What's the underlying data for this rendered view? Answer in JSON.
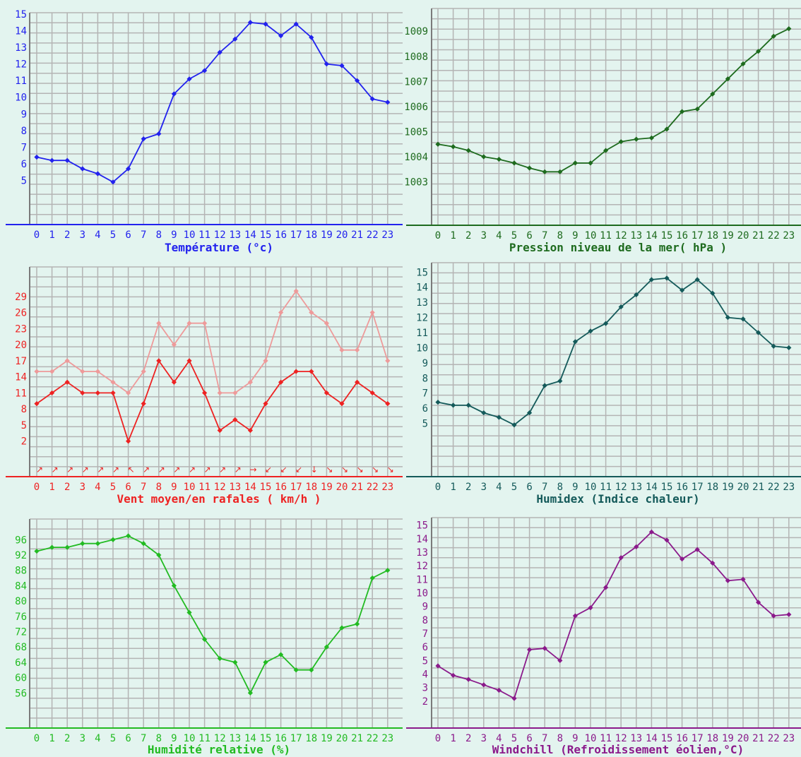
{
  "colors": {
    "background": "#e3f4ef",
    "grid": "#b4b4b4"
  },
  "chart_data": [
    {
      "type": "line",
      "title": "Température (°c)",
      "color": "#2222ee",
      "x": [
        0,
        1,
        2,
        3,
        4,
        5,
        6,
        7,
        8,
        9,
        10,
        11,
        12,
        13,
        14,
        15,
        16,
        17,
        18,
        19,
        20,
        21,
        22,
        23
      ],
      "series": [
        {
          "values": [
            6.4,
            6.2,
            6.2,
            5.7,
            5.4,
            4.9,
            5.7,
            7.5,
            7.8,
            10.2,
            11.1,
            11.6,
            12.7,
            13.5,
            14.5,
            14.4,
            13.7,
            14.4,
            13.6,
            12.0,
            11.9,
            11.0,
            9.9,
            9.7
          ]
        }
      ],
      "yticks": [
        5,
        6,
        7,
        8,
        9,
        10,
        11,
        12,
        13,
        14,
        15
      ],
      "ylim": [
        4,
        15
      ],
      "grid": true
    },
    {
      "type": "line",
      "title": "Pression niveau de la mer( hPa )",
      "color": "#1e6b1e",
      "x": [
        0,
        1,
        2,
        3,
        4,
        5,
        6,
        7,
        8,
        9,
        10,
        11,
        12,
        13,
        14,
        15,
        16,
        17,
        18,
        19,
        20,
        21,
        22,
        23
      ],
      "series": [
        {
          "values": [
            1004.5,
            1004.4,
            1004.25,
            1004.0,
            1003.9,
            1003.75,
            1003.55,
            1003.4,
            1003.4,
            1003.75,
            1003.75,
            1004.25,
            1004.6,
            1004.7,
            1004.75,
            1005.1,
            1005.8,
            1005.9,
            1006.5,
            1007.1,
            1007.7,
            1008.2,
            1008.8,
            1009.1
          ]
        }
      ],
      "yticks": [
        1003,
        1004,
        1005,
        1006,
        1007,
        1008,
        1009
      ],
      "ylim": [
        1002.2,
        1009.4
      ],
      "grid": true
    },
    {
      "type": "line",
      "title": "Vent moyen/en rafales ( km/h )",
      "color": "#ee2222",
      "x": [
        0,
        1,
        2,
        3,
        4,
        5,
        6,
        7,
        8,
        9,
        10,
        11,
        12,
        13,
        14,
        15,
        16,
        17,
        18,
        19,
        20,
        21,
        22,
        23
      ],
      "series": [
        {
          "color": "#ee9a9a",
          "values": [
            15,
            15,
            17,
            15,
            15,
            13,
            11,
            15,
            24,
            20,
            24,
            24,
            11,
            11,
            13,
            17,
            26,
            30,
            26,
            24,
            19,
            19,
            26,
            17
          ]
        },
        {
          "color": "#ee2222",
          "values": [
            9,
            11,
            13,
            11,
            11,
            11,
            2,
            9,
            17,
            13,
            17,
            11,
            4,
            6,
            4,
            9,
            13,
            15,
            15,
            11,
            9,
            13,
            11,
            9
          ]
        }
      ],
      "wind_direction_icons": [
        "arrow-ne",
        "arrow-ne",
        "arrow-ne",
        "arrow-ne",
        "arrow-ne",
        "arrow-ne",
        "arrow-nw",
        "arrow-ne",
        "arrow-ne",
        "arrow-ne",
        "arrow-ne",
        "arrow-ne",
        "arrow-ne",
        "arrow-ne",
        "arrow-e",
        "arrow-sw",
        "arrow-sw",
        "arrow-sw",
        "arrow-s",
        "arrow-se",
        "arrow-se",
        "arrow-se",
        "arrow-se",
        "arrow-se"
      ],
      "yticks": [
        2,
        5,
        8,
        11,
        14,
        17,
        20,
        23,
        26,
        29
      ],
      "ylim": [
        -0.8,
        32
      ],
      "grid": true
    },
    {
      "type": "line",
      "title": "Humidex (Indice chaleur)",
      "color": "#145a5a",
      "x": [
        0,
        1,
        2,
        3,
        4,
        5,
        6,
        7,
        8,
        9,
        10,
        11,
        12,
        13,
        14,
        15,
        16,
        17,
        18,
        19,
        20,
        21,
        22,
        23
      ],
      "series": [
        {
          "values": [
            6.4,
            6.2,
            6.2,
            5.7,
            5.4,
            4.9,
            5.7,
            7.5,
            7.8,
            10.4,
            11.1,
            11.6,
            12.7,
            13.5,
            14.5,
            14.6,
            13.8,
            14.5,
            13.6,
            12.0,
            11.9,
            11.0,
            10.1,
            10.0
          ]
        }
      ],
      "yticks": [
        5,
        6,
        7,
        8,
        9,
        10,
        11,
        12,
        13,
        14,
        15
      ],
      "ylim": [
        3.3,
        15.2
      ],
      "grid": true
    },
    {
      "type": "line",
      "title": "Humidité relative (%)",
      "color": "#22bb22",
      "x": [
        0,
        1,
        2,
        3,
        4,
        5,
        6,
        7,
        8,
        9,
        10,
        11,
        12,
        13,
        14,
        15,
        16,
        17,
        18,
        19,
        20,
        21,
        22,
        23
      ],
      "series": [
        {
          "values": [
            93,
            94,
            94,
            95,
            95,
            96,
            97,
            95,
            92,
            84,
            77,
            70,
            65,
            64,
            56,
            64,
            66,
            62,
            62,
            68,
            73,
            74,
            86,
            88
          ]
        }
      ],
      "yticks": [
        56,
        60,
        64,
        68,
        72,
        76,
        80,
        84,
        88,
        92,
        96
      ],
      "ylim": [
        52,
        99
      ],
      "grid": true
    },
    {
      "type": "line",
      "title": "Windchill (Refroidissement éolien,°C)",
      "color": "#8b1a8b",
      "x": [
        0,
        1,
        2,
        3,
        4,
        5,
        6,
        7,
        8,
        9,
        10,
        11,
        12,
        13,
        14,
        15,
        16,
        17,
        18,
        19,
        20,
        21,
        22,
        23
      ],
      "series": [
        {
          "values": [
            4.6,
            3.9,
            3.6,
            3.2,
            2.8,
            2.2,
            5.8,
            5.9,
            5.0,
            8.3,
            8.9,
            10.4,
            12.6,
            13.4,
            14.5,
            13.9,
            12.5,
            13.2,
            12.2,
            10.9,
            11.0,
            9.3,
            8.3,
            8.4
          ]
        }
      ],
      "yticks": [
        2,
        3,
        4,
        5,
        6,
        7,
        8,
        9,
        10,
        11,
        12,
        13,
        14,
        15
      ],
      "ylim": [
        1,
        15.3
      ],
      "grid": true
    }
  ]
}
